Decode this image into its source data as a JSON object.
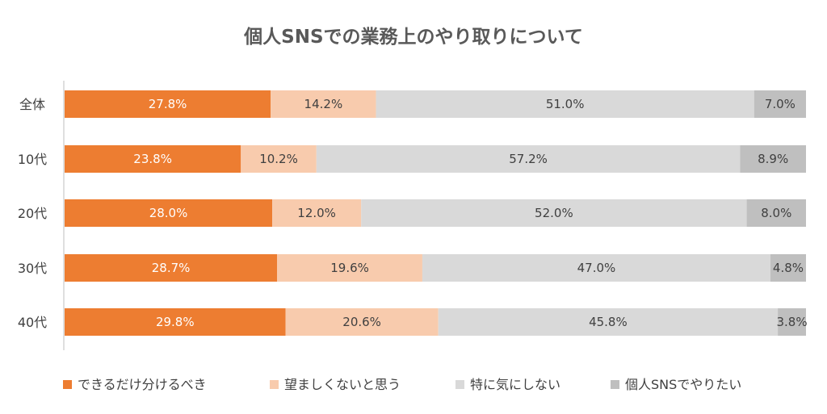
{
  "chart_data": {
    "type": "bar",
    "orientation": "horizontal",
    "stacked": true,
    "title": "個人SNSでの業務上のやり取りについて",
    "categories": [
      "全体",
      "10代",
      "20代",
      "30代",
      "40代"
    ],
    "series": [
      {
        "name": "できるだけ分けるべき",
        "color": "#ED7D31",
        "label_color": "#ffffff",
        "values": [
          27.8,
          23.8,
          28.0,
          28.7,
          29.8
        ],
        "labels": [
          "27.8%",
          "23.8%",
          "28.0%",
          "28.7%",
          "29.8%"
        ]
      },
      {
        "name": "望ましくないと思う",
        "color": "#F8CBAD",
        "label_color": "#404040",
        "values": [
          14.2,
          10.2,
          12.0,
          19.6,
          20.6
        ],
        "labels": [
          "14.2%",
          "10.2%",
          "12.0%",
          "19.6%",
          "20.6%"
        ]
      },
      {
        "name": "特に気にしない",
        "color": "#D9D9D9",
        "label_color": "#404040",
        "values": [
          51.0,
          57.2,
          52.0,
          47.0,
          45.8
        ],
        "labels": [
          "51.0%",
          "57.2%",
          "52.0%",
          "47.0%",
          "45.8%"
        ]
      },
      {
        "name": "個人SNSでやりたい",
        "color": "#BFBFBF",
        "label_color": "#404040",
        "values": [
          7.0,
          8.9,
          8.0,
          4.8,
          3.8
        ],
        "labels": [
          "7.0%",
          "8.9%",
          "8.0%",
          "4.8%",
          "3.8%"
        ]
      }
    ],
    "xlim": [
      0,
      100
    ],
    "grid": false,
    "legend": "bottom"
  }
}
